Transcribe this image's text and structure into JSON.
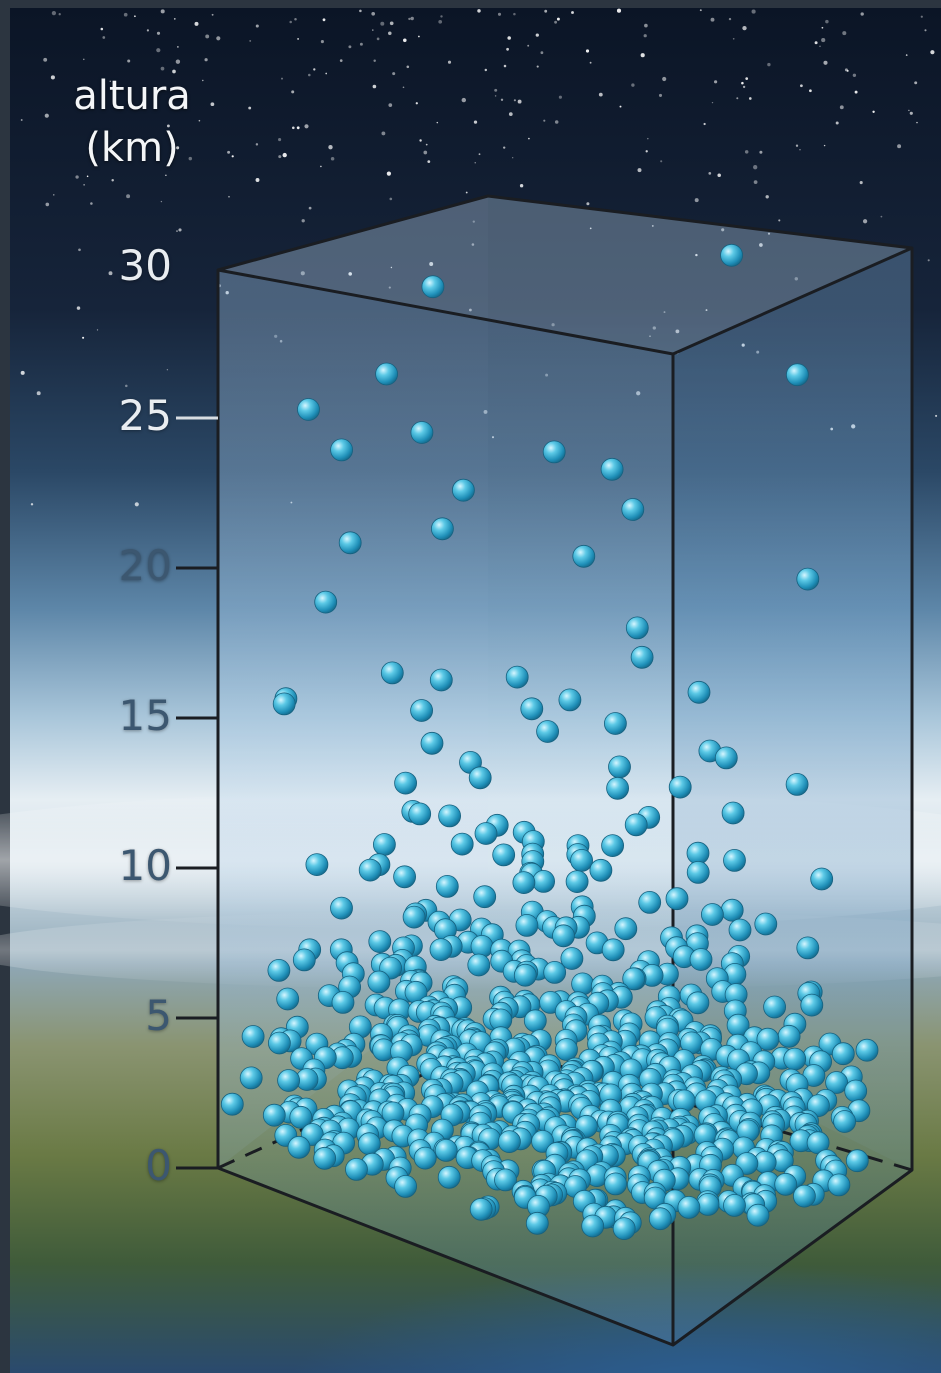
{
  "axis": {
    "title_line1": "altura",
    "title_line2": "(km)",
    "ticks": [
      "30",
      "25",
      "20",
      "15",
      "10",
      "5",
      "0"
    ],
    "tick_values": [
      30,
      25,
      20,
      15,
      10,
      5,
      0
    ]
  },
  "colors": {
    "particle": "#3fb6d6",
    "particle_highlight": "#c8f2ff",
    "box_edge": "#1a1d22",
    "tick_upper": "#e9edf1",
    "tick_lower": "#3c5770"
  },
  "illustration": {
    "particle_count_note": "density decreases with altitude"
  }
}
